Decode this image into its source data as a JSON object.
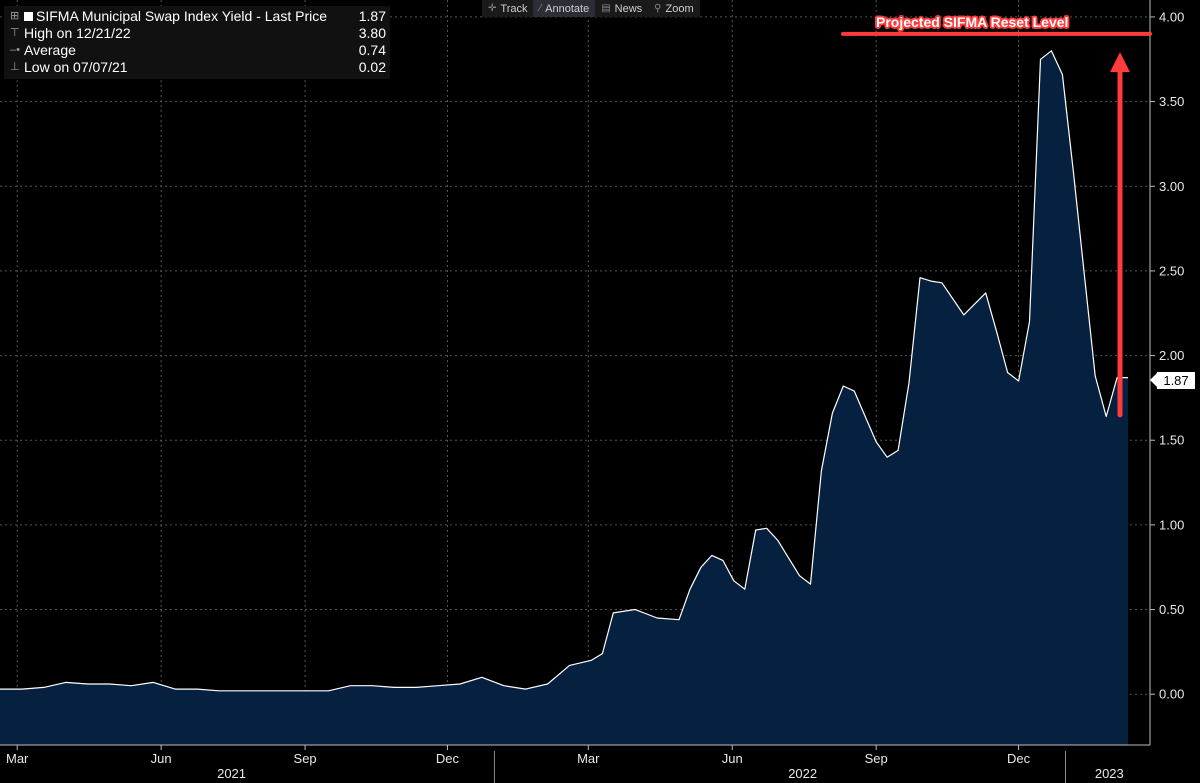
{
  "legend": {
    "title": "SIFMA Municipal Swap Index Yield - Last Price",
    "last_price": "1.87",
    "high_label": "High on 12/21/22",
    "high_value": "3.80",
    "avg_label": "Average",
    "avg_value": "0.74",
    "low_label": "Low on 07/07/21",
    "low_value": "0.02"
  },
  "toolbar": {
    "track": "Track",
    "annotate": "Annotate",
    "news": "News",
    "zoom": "Zoom"
  },
  "annotation": {
    "reset_label": "Projected SIFMA Reset Level",
    "reset_level": 3.9
  },
  "colors": {
    "area_fill": "#06213f",
    "line": "#ffffff",
    "annotation": "#ff3b3b",
    "grid": "#555555"
  },
  "chart_data": {
    "type": "area",
    "title": "SIFMA Municipal Swap Index Yield",
    "ylim": [
      -0.3,
      4.1
    ],
    "yticks": [
      "0.00",
      "0.50",
      "1.00",
      "1.50",
      "2.00",
      "2.50",
      "3.00",
      "3.50",
      "4.00"
    ],
    "ytick_values": [
      0,
      0.5,
      1,
      1.5,
      2,
      2.5,
      3,
      3.5,
      4
    ],
    "x_start": "2021-02-18",
    "x_end": "2023-02-23",
    "month_ticks": [
      {
        "label": "Mar",
        "date": "2021-03-01"
      },
      {
        "label": "Jun",
        "date": "2021-06-01"
      },
      {
        "label": "Sep",
        "date": "2021-09-01"
      },
      {
        "label": "Dec",
        "date": "2021-12-01"
      },
      {
        "label": "Mar",
        "date": "2022-03-01"
      },
      {
        "label": "Jun",
        "date": "2022-06-01"
      },
      {
        "label": "Sep",
        "date": "2022-09-01"
      },
      {
        "label": "Dec",
        "date": "2022-12-01"
      }
    ],
    "years": [
      {
        "label": "2021",
        "date": "2021-07-16"
      },
      {
        "label": "2022",
        "date": "2022-07-16"
      },
      {
        "label": "2023",
        "date": "2023-01-28"
      }
    ],
    "year_dividers": [
      "2021-12-31",
      "2022-12-31"
    ],
    "last_value": "1.87",
    "series": [
      {
        "name": "SIFMA Municipal Swap Index Yield",
        "x": [
          "2021-02-18",
          "2021-03-04",
          "2021-03-18",
          "2021-04-01",
          "2021-04-15",
          "2021-04-29",
          "2021-05-13",
          "2021-05-27",
          "2021-06-10",
          "2021-06-24",
          "2021-07-08",
          "2021-07-22",
          "2021-08-05",
          "2021-08-19",
          "2021-09-02",
          "2021-09-16",
          "2021-09-30",
          "2021-10-14",
          "2021-10-28",
          "2021-11-11",
          "2021-11-25",
          "2021-12-09",
          "2021-12-23",
          "2022-01-06",
          "2022-01-20",
          "2022-02-03",
          "2022-02-17",
          "2022-03-03",
          "2022-03-10",
          "2022-03-17",
          "2022-03-31",
          "2022-04-14",
          "2022-04-28",
          "2022-05-05",
          "2022-05-12",
          "2022-05-19",
          "2022-05-26",
          "2022-06-02",
          "2022-06-09",
          "2022-06-16",
          "2022-06-23",
          "2022-06-30",
          "2022-07-14",
          "2022-07-21",
          "2022-07-28",
          "2022-08-04",
          "2022-08-11",
          "2022-08-18",
          "2022-08-25",
          "2022-09-01",
          "2022-09-08",
          "2022-09-15",
          "2022-09-22",
          "2022-09-29",
          "2022-10-06",
          "2022-10-13",
          "2022-10-27",
          "2022-11-10",
          "2022-11-17",
          "2022-11-24",
          "2022-12-01",
          "2022-12-08",
          "2022-12-15",
          "2022-12-22",
          "2022-12-29",
          "2023-01-05",
          "2023-01-12",
          "2023-01-19",
          "2023-01-26",
          "2023-02-02",
          "2023-02-09"
        ],
        "y": [
          0.03,
          0.03,
          0.04,
          0.07,
          0.06,
          0.06,
          0.05,
          0.07,
          0.03,
          0.03,
          0.02,
          0.02,
          0.02,
          0.02,
          0.02,
          0.02,
          0.05,
          0.05,
          0.04,
          0.04,
          0.05,
          0.06,
          0.1,
          0.05,
          0.03,
          0.06,
          0.17,
          0.2,
          0.24,
          0.48,
          0.5,
          0.45,
          0.44,
          0.62,
          0.75,
          0.82,
          0.79,
          0.67,
          0.62,
          0.97,
          0.98,
          0.91,
          0.7,
          0.65,
          1.32,
          1.66,
          1.82,
          1.79,
          1.64,
          1.49,
          1.4,
          1.44,
          1.84,
          2.46,
          2.44,
          2.43,
          2.24,
          2.37,
          2.14,
          1.9,
          1.85,
          2.2,
          3.75,
          3.8,
          3.66,
          3.09,
          2.48,
          1.88,
          1.64,
          1.87,
          1.87
        ]
      }
    ]
  }
}
